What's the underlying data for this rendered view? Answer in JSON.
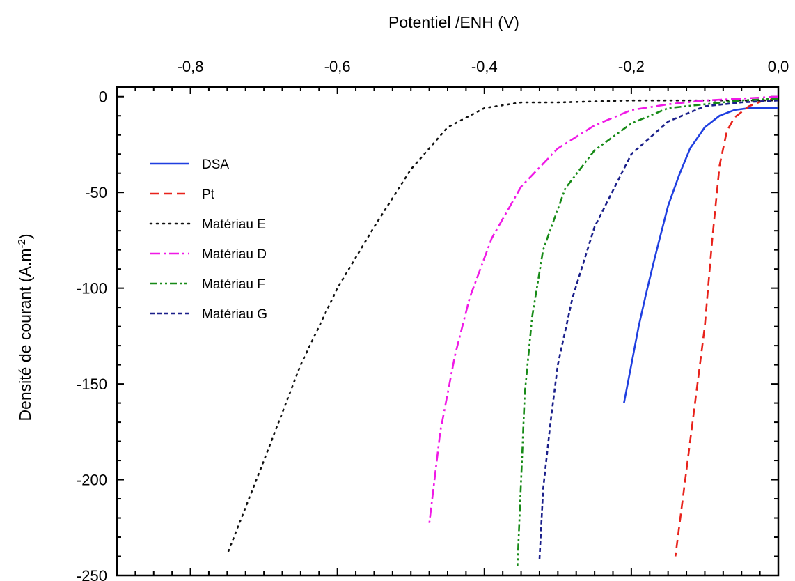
{
  "chart_data": {
    "type": "line",
    "xlabel": "Potentiel /ENH (V)",
    "ylabel": "Densité de courant (A.m",
    "ylabel_superscript": "-2",
    "ylabel_suffix": ")",
    "xlim": [
      -0.9,
      0.0
    ],
    "ylim": [
      -250,
      5
    ],
    "x_ticks": [
      -0.8,
      -0.6,
      -0.4,
      -0.2,
      0.0
    ],
    "x_tick_labels": [
      "-0,8",
      "-0,6",
      "-0,4",
      "-0,2",
      "0,0"
    ],
    "y_ticks": [
      0,
      -50,
      -100,
      -150,
      -200,
      -250
    ],
    "y_tick_labels": [
      "0",
      "-50",
      "-100",
      "-150",
      "-200",
      "-250"
    ],
    "x_axis_position": "top",
    "grid": false,
    "legend_position": "left",
    "series": [
      {
        "name": "DSA",
        "color": "#1f3fe0",
        "dash": "solid",
        "x": [
          0.0,
          -0.02,
          -0.04,
          -0.06,
          -0.08,
          -0.1,
          -0.12,
          -0.135,
          -0.15,
          -0.16,
          -0.17,
          -0.18,
          -0.19,
          -0.2,
          -0.21
        ],
        "y": [
          -6,
          -6,
          -6,
          -7,
          -10,
          -16,
          -27,
          -41,
          -57,
          -72,
          -87,
          -103,
          -120,
          -140,
          -160
        ]
      },
      {
        "name": "Pt",
        "color": "#e8221b",
        "dash": "dashed",
        "x": [
          0.0,
          -0.02,
          -0.04,
          -0.06,
          -0.07,
          -0.08,
          -0.09,
          -0.1,
          -0.11,
          -0.12,
          -0.13,
          -0.14
        ],
        "y": [
          -1,
          -2,
          -5,
          -11,
          -18,
          -36,
          -75,
          -120,
          -150,
          -180,
          -210,
          -240
        ]
      },
      {
        "name": "Matériau E",
        "color": "#111111",
        "dash": "dotted",
        "x": [
          0.0,
          -0.1,
          -0.2,
          -0.3,
          -0.35,
          -0.4,
          -0.45,
          -0.5,
          -0.55,
          -0.6,
          -0.65,
          -0.7,
          -0.75
        ],
        "y": [
          -2,
          -2,
          -2,
          -3,
          -3,
          -6,
          -16,
          -38,
          -68,
          -100,
          -140,
          -190,
          -239
        ]
      },
      {
        "name": "Matériau D",
        "color": "#f019e6",
        "dash": "dashdot",
        "x": [
          0.0,
          -0.05,
          -0.1,
          -0.15,
          -0.2,
          -0.25,
          -0.3,
          -0.35,
          -0.39,
          -0.42,
          -0.44,
          -0.46,
          -0.475
        ],
        "y": [
          0,
          -1,
          -2,
          -4,
          -7,
          -15,
          -27,
          -47,
          -74,
          -105,
          -135,
          -175,
          -223
        ]
      },
      {
        "name": "Matériau F",
        "color": "#178a17",
        "dash": "dashdotdot",
        "x": [
          0.0,
          -0.05,
          -0.1,
          -0.15,
          -0.2,
          -0.25,
          -0.29,
          -0.32,
          -0.335,
          -0.345,
          -0.35,
          -0.355
        ],
        "y": [
          -1,
          -2,
          -4,
          -6,
          -14,
          -28,
          -48,
          -80,
          -115,
          -155,
          -200,
          -245
        ]
      },
      {
        "name": "Matériau G",
        "color": "#1a1f8a",
        "dash": "shortdash",
        "x": [
          0.0,
          -0.05,
          -0.1,
          -0.15,
          -0.2,
          -0.25,
          -0.28,
          -0.3,
          -0.31,
          -0.32,
          -0.325
        ],
        "y": [
          -2,
          -3,
          -5,
          -13,
          -30,
          -68,
          -105,
          -140,
          -170,
          -205,
          -242
        ]
      }
    ]
  }
}
